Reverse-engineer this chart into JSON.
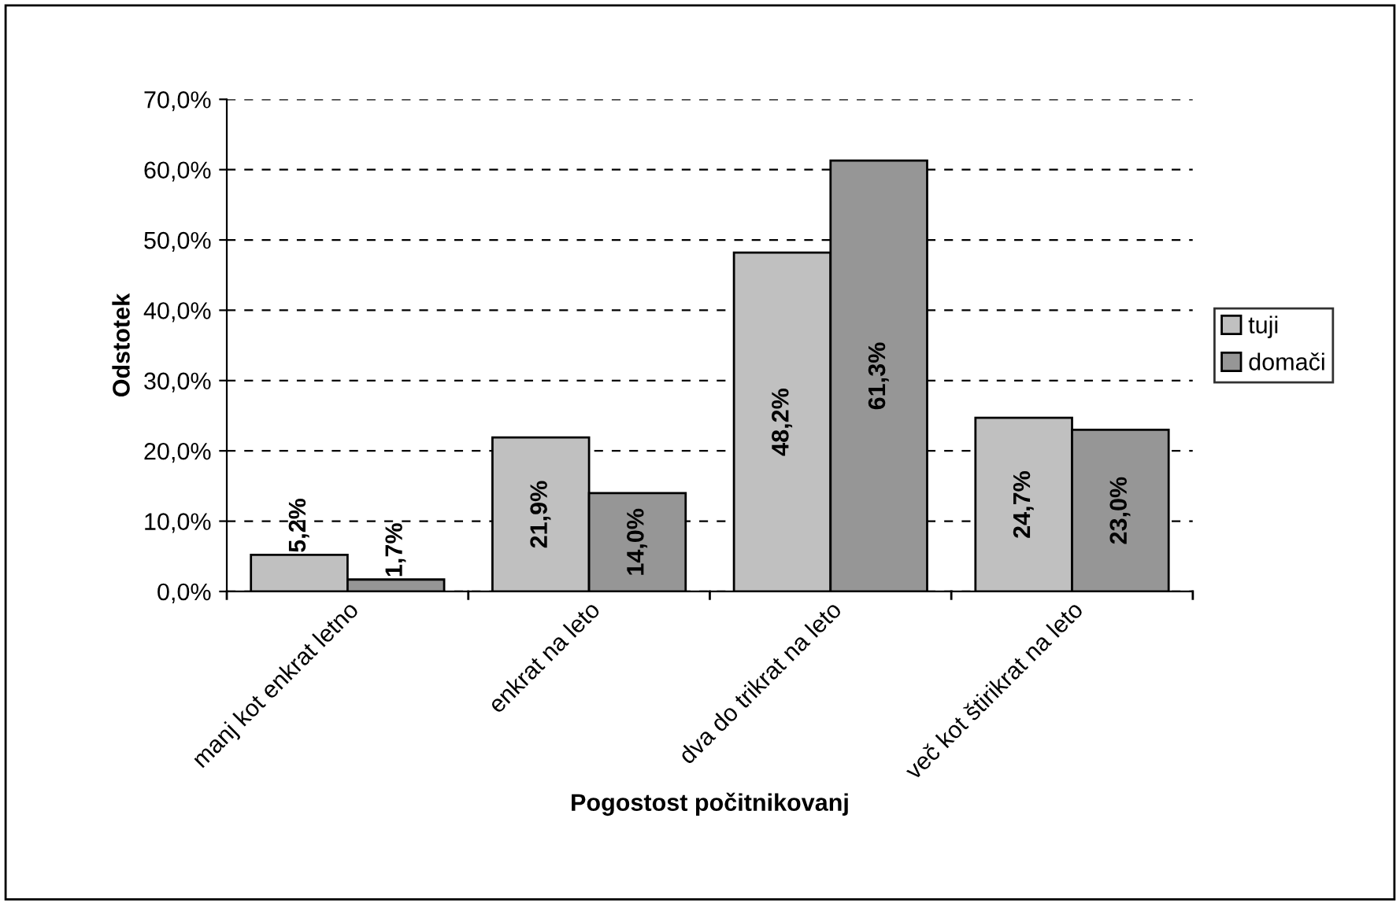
{
  "chart_data": {
    "type": "bar",
    "xlabel": "Pogostost počitnikovanj",
    "ylabel": "Odstotek",
    "categories": [
      "manj kot enkrat letno",
      "enkrat na leto",
      "dva do trikrat na leto",
      "več kot štirikrat na leto"
    ],
    "series": [
      {
        "name": "tuji",
        "color": "#c0c0c0",
        "values": [
          5.2,
          21.9,
          48.2,
          24.7
        ],
        "value_labels": [
          "5,2%",
          "21,9%",
          "48,2%",
          "24,7%"
        ]
      },
      {
        "name": "domači",
        "color": "#969696",
        "values": [
          1.7,
          14.0,
          61.3,
          23.0
        ],
        "value_labels": [
          "1,7%",
          "14,0%",
          "61,3%",
          "23,0%"
        ]
      }
    ],
    "ylim": [
      0,
      70
    ],
    "yticks": [
      {
        "value": 0,
        "label": "0,0%"
      },
      {
        "value": 10,
        "label": "10,0%"
      },
      {
        "value": 20,
        "label": "20,0%"
      },
      {
        "value": 30,
        "label": "30,0%"
      },
      {
        "value": 40,
        "label": "40,0%"
      },
      {
        "value": 50,
        "label": "50,0%"
      },
      {
        "value": 60,
        "label": "60,0%"
      },
      {
        "value": 70,
        "label": "70,0%"
      }
    ],
    "grid": "y",
    "line_style": "dashed",
    "legend": "right"
  }
}
